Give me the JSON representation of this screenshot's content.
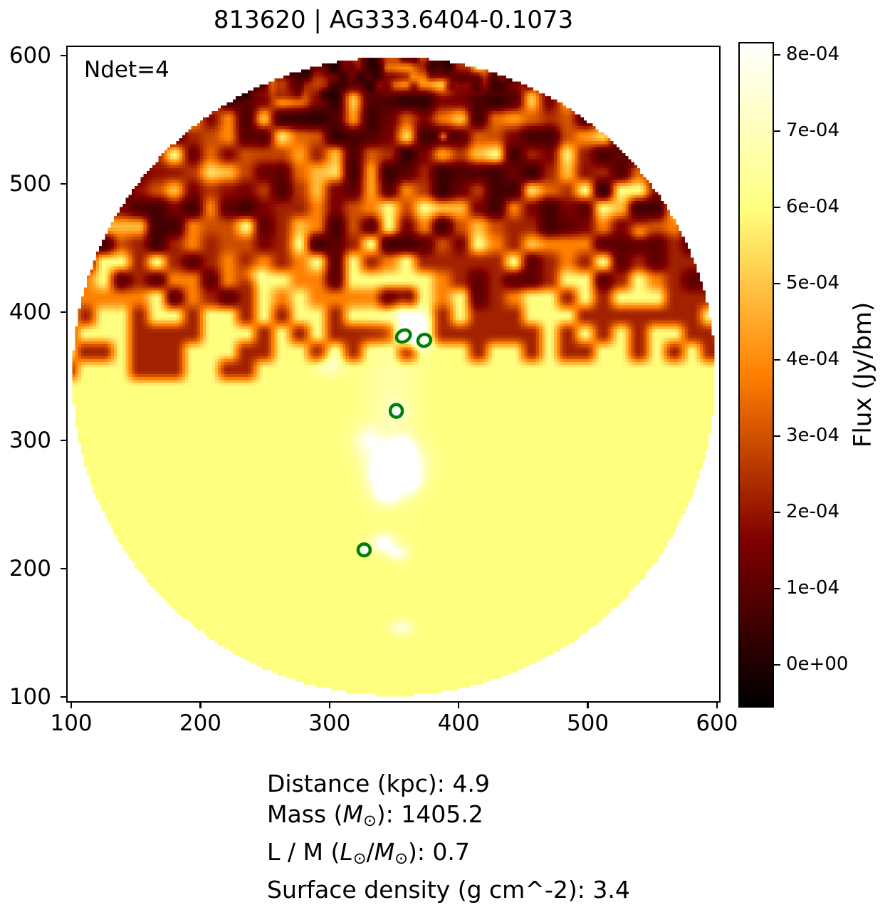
{
  "figure": {
    "title": "813620 | AG333.6404-0.1073",
    "annotation": "Ndet=4"
  },
  "axes": {
    "x_tick_labels": [
      "100",
      "200",
      "300",
      "400",
      "500",
      "600"
    ],
    "x_tick_values": [
      100,
      200,
      300,
      400,
      500,
      600
    ],
    "y_tick_labels": [
      "100",
      "200",
      "300",
      "400",
      "500",
      "600"
    ],
    "y_tick_values": [
      100,
      200,
      300,
      400,
      500,
      600
    ],
    "x_range": [
      96.1,
      602.8
    ],
    "y_range": [
      95.6,
      607.9
    ]
  },
  "colorbar": {
    "label": "Flux (Jy/bm)",
    "tick_labels": [
      "8e-04",
      "7e-04",
      "6e-04",
      "5e-04",
      "4e-04",
      "3e-04",
      "2e-04",
      "1e-04",
      "0e+00"
    ],
    "tick_values": [
      0.0008,
      0.0007,
      0.0006,
      0.0005,
      0.0004,
      0.0003,
      0.0002,
      0.0001,
      0.0
    ],
    "vmin": -5.6e-05,
    "vmax": 0.000817,
    "colormap": "afmhot"
  },
  "stats": {
    "lines": [
      [
        {
          "t": "Distance (kpc): 4.9"
        }
      ],
      [
        {
          "t": "Mass ("
        },
        {
          "t": "M",
          "italic": true
        },
        {
          "t": "⊙",
          "sub": true
        },
        {
          "t": "): 1405.2"
        }
      ],
      [
        {
          "t": "L / M ("
        },
        {
          "t": "L",
          "italic": true
        },
        {
          "t": "⊙",
          "sub": true
        },
        {
          "t": "/"
        },
        {
          "t": "M",
          "italic": true
        },
        {
          "t": "⊙",
          "sub": true
        },
        {
          "t": "): 0.7"
        }
      ],
      [
        {
          "t": "Surface density (g cm^-2): 3.4"
        }
      ]
    ],
    "plain": [
      "Distance (kpc): 4.9",
      "Mass (M⊙): 1405.2",
      "L / M (L⊙/M⊙): 0.7",
      "Surface density (g cm^-2): 3.4"
    ]
  },
  "colors": {
    "detection_marker": "#008000",
    "axis": "#000000",
    "background": "#ffffff"
  },
  "chart_data": {
    "type": "heatmap",
    "title": "813620 | AG333.6404-0.1073",
    "annotation": "Ndet=4",
    "xlabel": "",
    "ylabel": "",
    "xlim": [
      96.1,
      602.8
    ],
    "ylim": [
      95.6,
      607.9
    ],
    "x_ticks": [
      100,
      200,
      300,
      400,
      500,
      600
    ],
    "y_ticks": [
      100,
      200,
      300,
      400,
      500,
      600
    ],
    "grid": false,
    "colorbar_label": "Flux (Jy/bm)",
    "colorbar_tick_labels": [
      "0e+00",
      "1e-04",
      "2e-04",
      "3e-04",
      "4e-04",
      "5e-04",
      "6e-04",
      "7e-04",
      "8e-04"
    ],
    "colorbar_range": [
      -5.6e-05,
      0.000817
    ],
    "colormap": "afmhot",
    "field_center": [
      350,
      350
    ],
    "field_radius": 249,
    "n_detections": 4,
    "detections": [
      {
        "x": 357.2,
        "y": 381.4,
        "rx": 5.6,
        "ry": 4.4,
        "angle_deg": -30
      },
      {
        "x": 373.4,
        "y": 378.1,
        "rx": 5.0,
        "ry": 4.6,
        "angle_deg": -25
      },
      {
        "x": 351.7,
        "y": 323.1,
        "rx": 4.7,
        "ry": 5.0,
        "angle_deg": 0
      },
      {
        "x": 326.8,
        "y": 214.7,
        "rx": 4.7,
        "ry": 4.6,
        "angle_deg": 0
      }
    ],
    "bright_regions": [
      {
        "x": 348,
        "y": 330,
        "sx": 16,
        "sy": 48,
        "a": 5.5e-05
      },
      {
        "x": 352,
        "y": 281,
        "sx": 13,
        "sy": 11,
        "a": 0.0003
      },
      {
        "x": 342,
        "y": 272,
        "sx": 7,
        "sy": 7,
        "a": 0.00022
      },
      {
        "x": 356,
        "y": 294,
        "sx": 6,
        "sy": 6,
        "a": 0.0002
      },
      {
        "x": 345,
        "y": 258,
        "sx": 8,
        "sy": 6,
        "a": 0.00017
      },
      {
        "x": 362,
        "y": 268,
        "sx": 6,
        "sy": 6,
        "a": 0.00018
      },
      {
        "x": 358,
        "y": 383,
        "sx": 7,
        "sy": 6,
        "a": 0.00028
      },
      {
        "x": 371,
        "y": 378,
        "sx": 6,
        "sy": 5,
        "a": 0.00023
      },
      {
        "x": 367,
        "y": 392,
        "sx": 8,
        "sy": 7,
        "a": 0.0002
      },
      {
        "x": 357,
        "y": 404,
        "sx": 6,
        "sy": 6,
        "a": 0.00013
      },
      {
        "x": 357.2,
        "y": 381.4,
        "sx": 2.2,
        "sy": 1.9,
        "a": 0.00055
      },
      {
        "x": 373.4,
        "y": 378.1,
        "sx": 2.2,
        "sy": 1.9,
        "a": 0.0005
      },
      {
        "x": 351.7,
        "y": 323.1,
        "sx": 2.0,
        "sy": 2.0,
        "a": 0.00055
      },
      {
        "x": 352,
        "y": 323,
        "sx": 5,
        "sy": 5,
        "a": 0.00012
      },
      {
        "x": 326.8,
        "y": 214.7,
        "sx": 2.0,
        "sy": 2.0,
        "a": 0.00045
      },
      {
        "x": 342,
        "y": 220,
        "sx": 7,
        "sy": 5,
        "a": 0.00018
      },
      {
        "x": 353,
        "y": 212,
        "sx": 6,
        "sy": 4,
        "a": 0.00014
      },
      {
        "x": 388,
        "y": 537,
        "sx": 2.5,
        "sy": 2.5,
        "a": 0.00022
      },
      {
        "x": 540,
        "y": 462,
        "sx": 5,
        "sy": 4,
        "a": 0.00015
      },
      {
        "x": 356,
        "y": 154,
        "sx": 6,
        "sy": 4,
        "a": 0.00013
      },
      {
        "x": 240,
        "y": 430,
        "sx": 6,
        "sy": 5,
        "a": 0.00012
      },
      {
        "x": 300,
        "y": 360,
        "sx": 8,
        "sy": 7,
        "a": 0.0001
      },
      {
        "x": 330,
        "y": 300,
        "sx": 8,
        "sy": 8,
        "a": 0.00012
      }
    ],
    "stats": {
      "distance_kpc": 4.9,
      "mass_msun": 1405.2,
      "l_over_m_lsun_msun": 0.7,
      "surface_density_g_cm2": 3.4
    }
  }
}
